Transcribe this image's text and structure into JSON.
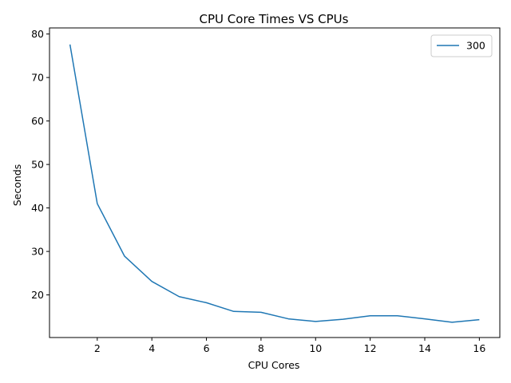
{
  "chart_data": {
    "type": "line",
    "title": "CPU Core Times VS CPUs",
    "xlabel": "CPU Cores",
    "ylabel": "Seconds",
    "xlim": [
      0.25,
      16.75
    ],
    "ylim": [
      10.2,
      81.4
    ],
    "xticks": [
      2,
      4,
      6,
      8,
      10,
      12,
      14,
      16
    ],
    "yticks": [
      20,
      30,
      40,
      50,
      60,
      70,
      80
    ],
    "legend_position": "top-right",
    "grid": false,
    "series": [
      {
        "name": "300",
        "color": "#1f77b4",
        "x": [
          1,
          2,
          3,
          4,
          5,
          6,
          7,
          8,
          9,
          10,
          11,
          12,
          13,
          14,
          15,
          16
        ],
        "y": [
          77.6,
          41.0,
          28.9,
          23.1,
          19.6,
          18.2,
          16.2,
          16.0,
          14.5,
          13.9,
          14.4,
          15.2,
          15.2,
          14.5,
          13.7,
          14.3
        ]
      }
    ]
  }
}
